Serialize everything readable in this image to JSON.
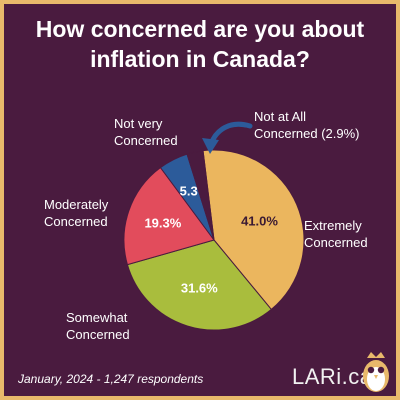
{
  "header": {
    "title_line1": "How concerned are you about",
    "title_line2": "inflation in Canada?"
  },
  "chart_data": {
    "type": "pie",
    "title": "How concerned are you about inflation in Canada?",
    "slices": [
      {
        "label_lines": [
          "Extremely",
          "Concerned"
        ],
        "value": 41.0,
        "value_label": "41.0%",
        "color": "#ebb65e"
      },
      {
        "label_lines": [
          "Somewhat",
          "Concerned"
        ],
        "value": 31.6,
        "value_label": "31.6%",
        "color": "#a9bd3d"
      },
      {
        "label_lines": [
          "Moderately",
          "Concerned"
        ],
        "value": 19.3,
        "value_label": "19.3%",
        "color": "#e24c5c"
      },
      {
        "label_lines": [
          "Not very",
          "Concerned"
        ],
        "value": 5.3,
        "value_label": "5.3",
        "color": "#2c5b9a"
      },
      {
        "label_lines": [
          "Not at All",
          "Concerned (2.9%)"
        ],
        "value": 2.9,
        "value_label": "",
        "color": "#4a1b3f"
      }
    ]
  },
  "footer": {
    "survey_note": "January, 2024 - 1,247 respondents",
    "brand": "LARi.ca",
    "logo_icon": "owl-icon"
  },
  "colors": {
    "background": "#4a1b3f",
    "border": "#e8b96b",
    "arrow": "#2c5b9a"
  }
}
